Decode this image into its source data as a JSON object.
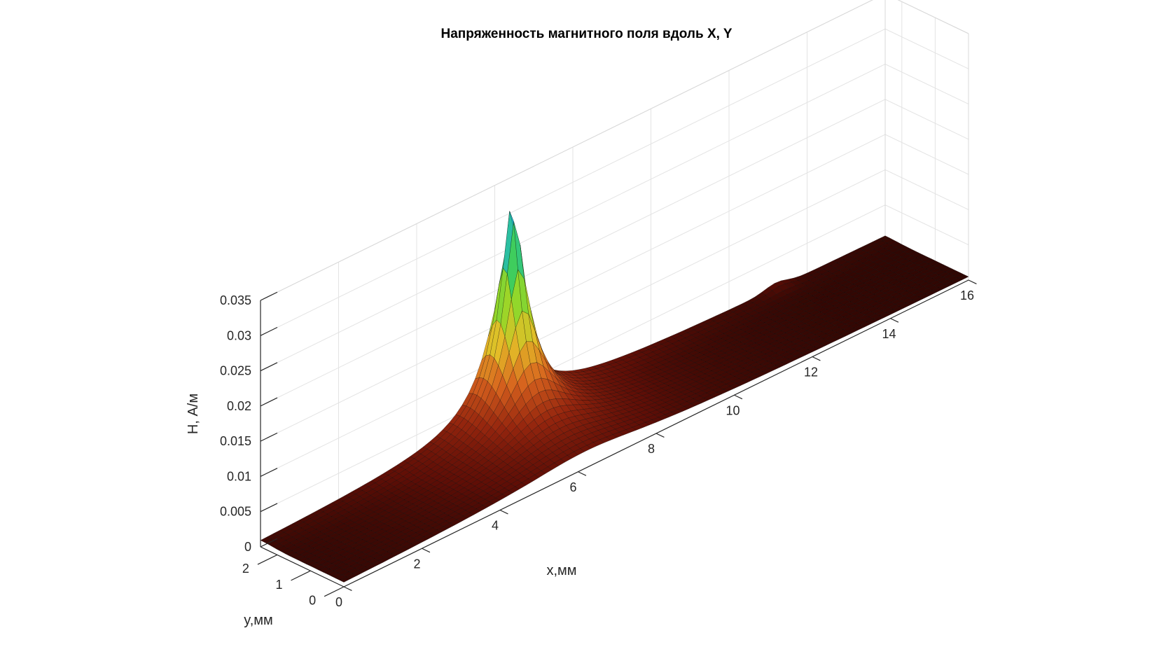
{
  "chart_data": {
    "type": "surface",
    "title": "Напряженность магнитного поля вдоль X, Y",
    "xlabel": "x,мм",
    "ylabel": "y,мм",
    "zlabel": "H, А/м",
    "xlim": [
      0,
      16
    ],
    "ylim": [
      0,
      2.5
    ],
    "zlim": [
      0,
      0.035
    ],
    "x_ticks": [
      "0",
      "2",
      "4",
      "6",
      "8",
      "10",
      "12",
      "14",
      "16"
    ],
    "y_ticks": [
      "0",
      "1",
      "2"
    ],
    "z_ticks": [
      "0",
      "0.005",
      "0.01",
      "0.015",
      "0.02",
      "0.025",
      "0.03",
      "0.035"
    ],
    "grid": true,
    "colormap": "hot-jet",
    "surface": {
      "peak": {
        "x": 6.2,
        "y": 2.2,
        "H": 0.032
      },
      "ridge_x": {
        "y": 2.5,
        "H_near_peak": 0.006,
        "H_at_x0": 0.0005,
        "H_at_x16": 0.0008
      },
      "ridge_y": {
        "x": 6.2,
        "H_at_y0": 0.0008
      },
      "background_H": 0.0003,
      "edge_bump": {
        "x": 13.2,
        "y": 2.5,
        "H": 0.0015
      }
    }
  }
}
